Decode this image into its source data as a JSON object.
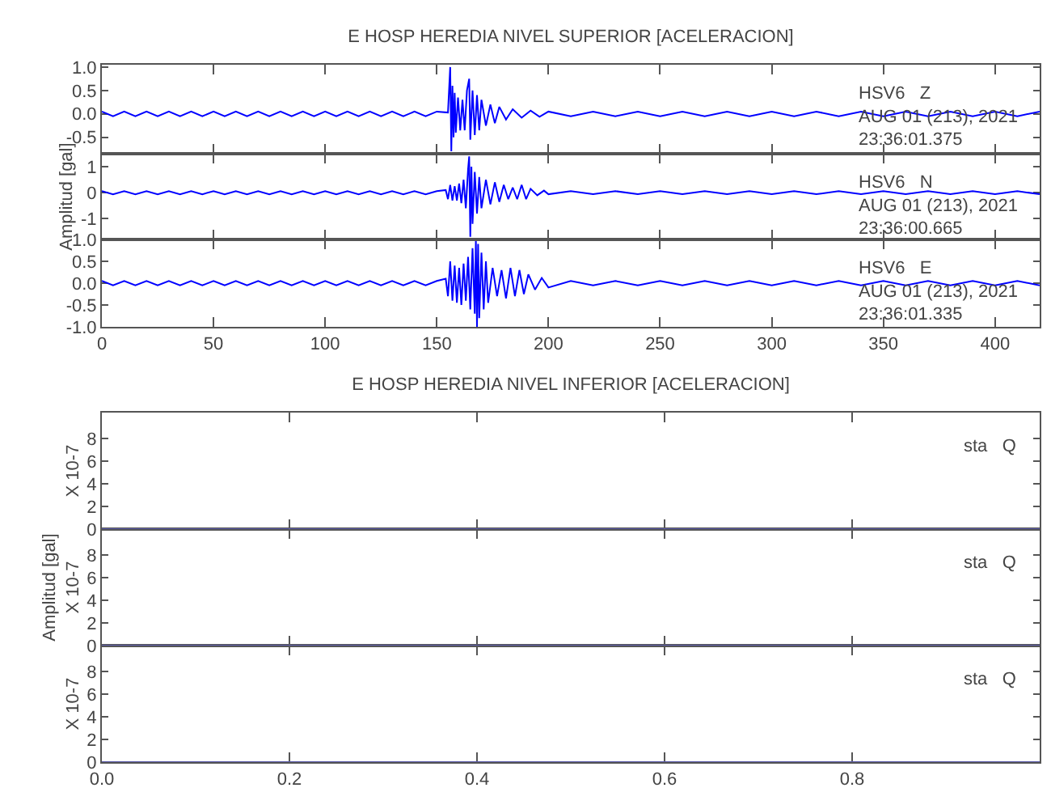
{
  "chart_data": [
    {
      "type": "line",
      "title": "E HOSP HEREDIA NIVEL SUPERIOR [ACELERACION]",
      "annotations": [
        "HSV6   Z",
        "AUG 01 (213), 2021",
        "23:36:01.375"
      ],
      "xlim": [
        0,
        420
      ],
      "xticks": [
        0,
        50,
        100,
        150,
        200,
        250,
        300,
        350,
        400
      ],
      "ylim": [
        -0.85,
        1.05
      ],
      "yticks": [
        -0.5,
        {
          "value": 0,
          "label": "0.0"
        },
        0.5,
        {
          "value": 1,
          "label": "1.0"
        }
      ],
      "tick_labels": "y",
      "grid": false,
      "series": [
        {
          "color": "#0000ff",
          "x": [
            0,
            5,
            10,
            15,
            20,
            25,
            30,
            35,
            40,
            45,
            50,
            55,
            60,
            65,
            70,
            75,
            80,
            85,
            90,
            95,
            100,
            105,
            110,
            115,
            120,
            125,
            130,
            135,
            140,
            145,
            150,
            155,
            156,
            156.5,
            157,
            157.5,
            158,
            158.5,
            159.5,
            160.5,
            161.5,
            162.5,
            163.5,
            164.5,
            165,
            166,
            167,
            168,
            169,
            170,
            172,
            174,
            176,
            178,
            181,
            184,
            188,
            192,
            196,
            200,
            210,
            220,
            230,
            240,
            250,
            260,
            270,
            280,
            290,
            300,
            310,
            320,
            330,
            340,
            350,
            360,
            370,
            380,
            390,
            400,
            410,
            420
          ],
          "values": [
            0.05,
            -0.05,
            0.05,
            -0.05,
            0.05,
            -0.05,
            0.05,
            -0.05,
            0.05,
            -0.05,
            0.05,
            -0.05,
            0.05,
            -0.05,
            0.05,
            -0.05,
            0.05,
            -0.05,
            0.05,
            -0.05,
            0.05,
            -0.05,
            0.05,
            -0.05,
            0.05,
            -0.05,
            0.05,
            -0.05,
            0.05,
            -0.05,
            0.05,
            0.03,
            1.0,
            -0.8,
            0.6,
            -0.5,
            0.45,
            -0.4,
            0.35,
            -0.35,
            0.3,
            -0.35,
            0.5,
            0.75,
            -0.55,
            0.5,
            -0.45,
            0.4,
            -0.35,
            0.3,
            -0.25,
            0.2,
            -0.2,
            0.15,
            -0.12,
            0.1,
            -0.08,
            0.07,
            -0.06,
            0.05,
            -0.05,
            0.05,
            -0.05,
            0.05,
            -0.05,
            0.05,
            -0.05,
            0.05,
            -0.05,
            0.05,
            -0.05,
            0.05,
            -0.05,
            0.05,
            -0.05,
            0.05,
            -0.05,
            0.05,
            -0.05,
            0.05,
            -0.05,
            0.05
          ]
        }
      ]
    },
    {
      "type": "line",
      "ylabel": "Amplitud [gal]",
      "annotations": [
        "HSV6   N",
        "AUG 01 (213), 2021",
        "23:36:00.665"
      ],
      "xlim": [
        0,
        420
      ],
      "xticks": [
        0,
        50,
        100,
        150,
        200,
        250,
        300,
        350,
        400
      ],
      "ylim": [
        -1.8,
        1.5
      ],
      "yticks": [
        -1,
        0,
        1
      ],
      "tick_labels": "y",
      "grid": false,
      "series": [
        {
          "color": "#0000ff",
          "x": [
            0,
            5,
            10,
            15,
            20,
            25,
            30,
            35,
            40,
            45,
            50,
            55,
            60,
            65,
            70,
            75,
            80,
            85,
            90,
            95,
            100,
            105,
            110,
            115,
            120,
            125,
            130,
            135,
            140,
            145,
            150,
            154,
            155,
            156,
            157,
            158,
            159,
            160,
            161,
            162,
            163,
            164,
            164.5,
            165,
            165.5,
            166,
            167,
            168,
            169,
            170,
            172,
            174,
            176,
            178,
            180,
            182,
            184,
            186,
            188,
            190,
            192,
            195,
            198,
            200,
            210,
            220,
            230,
            240,
            250,
            260,
            270,
            280,
            290,
            300,
            310,
            320,
            330,
            340,
            350,
            360,
            370,
            380,
            390,
            400,
            410,
            420
          ],
          "values": [
            0.06,
            -0.06,
            0.06,
            -0.06,
            0.06,
            -0.06,
            0.06,
            -0.06,
            0.06,
            -0.06,
            0.06,
            -0.06,
            0.06,
            -0.06,
            0.06,
            -0.06,
            0.06,
            -0.06,
            0.06,
            -0.06,
            0.06,
            -0.06,
            0.06,
            -0.06,
            0.06,
            -0.06,
            0.06,
            -0.06,
            0.06,
            -0.06,
            0.06,
            0.1,
            -0.25,
            0.3,
            -0.3,
            0.25,
            -0.3,
            0.35,
            -0.4,
            0.5,
            -0.6,
            0.9,
            1.4,
            -1.7,
            1.0,
            -1.2,
            0.8,
            -0.8,
            0.6,
            -0.6,
            0.5,
            -0.45,
            0.4,
            -0.35,
            0.3,
            -0.25,
            0.2,
            -0.25,
            0.3,
            -0.25,
            0.15,
            -0.1,
            0.08,
            -0.06,
            0.06,
            -0.06,
            0.06,
            -0.06,
            0.06,
            -0.06,
            0.06,
            -0.06,
            0.06,
            -0.06,
            0.06,
            -0.06,
            0.06,
            -0.06,
            0.06,
            -0.06,
            0.06,
            -0.06,
            0.06,
            -0.06,
            0.06,
            -0.06
          ]
        }
      ]
    },
    {
      "type": "line",
      "annotations": [
        "HSV6   E",
        "AUG 01 (213), 2021",
        "23:36:01.335"
      ],
      "xlim": [
        0,
        420
      ],
      "xticks": [
        0,
        50,
        100,
        150,
        200,
        250,
        300,
        350,
        400
      ],
      "ylim": [
        -1.0,
        1.0
      ],
      "yticks": [
        {
          "value": -1,
          "label": "-1.0"
        },
        -0.5,
        {
          "value": 0,
          "label": "0.0"
        },
        0.5,
        {
          "value": 1,
          "label": "1.0"
        }
      ],
      "grid": false,
      "series": [
        {
          "color": "#0000ff",
          "x": [
            0,
            5,
            10,
            15,
            20,
            25,
            30,
            35,
            40,
            45,
            50,
            55,
            60,
            65,
            70,
            75,
            80,
            85,
            90,
            95,
            100,
            105,
            110,
            115,
            120,
            125,
            130,
            135,
            140,
            145,
            150,
            154,
            155,
            156,
            157,
            158,
            159,
            160,
            161,
            162,
            163,
            164,
            165,
            166,
            167,
            167.5,
            168,
            168.5,
            169,
            170,
            171,
            172,
            173,
            175,
            177,
            179,
            181,
            183,
            185,
            187,
            189,
            191,
            194,
            197,
            200,
            210,
            220,
            230,
            240,
            250,
            260,
            270,
            280,
            290,
            300,
            310,
            320,
            330,
            340,
            350,
            360,
            370,
            380,
            390,
            400,
            410,
            420
          ],
          "values": [
            0.05,
            -0.05,
            0.05,
            -0.05,
            0.05,
            -0.05,
            0.05,
            -0.05,
            0.05,
            -0.05,
            0.05,
            -0.05,
            0.05,
            -0.05,
            0.05,
            -0.05,
            0.05,
            -0.05,
            0.05,
            -0.05,
            0.05,
            -0.05,
            0.05,
            -0.05,
            0.05,
            -0.05,
            0.05,
            -0.05,
            0.05,
            -0.05,
            0.05,
            0.1,
            -0.3,
            0.5,
            -0.4,
            0.4,
            -0.45,
            0.35,
            -0.5,
            0.45,
            -0.4,
            0.6,
            -0.6,
            0.8,
            -0.7,
            1.0,
            -1.0,
            0.9,
            -0.8,
            0.7,
            -0.6,
            0.5,
            -0.45,
            0.35,
            -0.3,
            0.3,
            -0.35,
            0.35,
            -0.3,
            0.3,
            -0.25,
            0.2,
            -0.15,
            0.12,
            -0.1,
            0.05,
            -0.05,
            0.05,
            -0.05,
            0.05,
            -0.05,
            0.05,
            -0.05,
            0.05,
            -0.05,
            0.05,
            -0.05,
            0.05,
            -0.05,
            0.05,
            -0.05,
            0.05,
            -0.05,
            0.05,
            -0.05,
            0.05,
            -0.05
          ]
        }
      ]
    },
    {
      "type": "line",
      "title": "E HOSP HEREDIA NIVEL INFERIOR [ACELERACION]",
      "ylabel": "X 10-7",
      "annotations": [
        "sta   Q"
      ],
      "xlim": [
        0,
        1
      ],
      "xticks": [
        0.2,
        0.4,
        0.6,
        0.8
      ],
      "ylim": [
        0,
        10.3
      ],
      "yticks": [
        0,
        2,
        4,
        6,
        8
      ],
      "tick_labels": "y",
      "grid": false,
      "series": [
        {
          "color": "#5b5bab",
          "x": [
            0,
            1
          ],
          "values": [
            0,
            0
          ]
        }
      ]
    },
    {
      "type": "line",
      "ylabel": "Amplitud [gal]\nX 10-7",
      "annotations": [
        "sta   Q"
      ],
      "xlim": [
        0,
        1
      ],
      "xticks": [
        0.2,
        0.4,
        0.6,
        0.8
      ],
      "ylim": [
        0,
        10.3
      ],
      "yticks": [
        0,
        2,
        4,
        6,
        8
      ],
      "tick_labels": "y",
      "grid": false,
      "series": [
        {
          "color": "#5b5bab",
          "x": [
            0,
            1
          ],
          "values": [
            0,
            0
          ]
        }
      ]
    },
    {
      "type": "line",
      "ylabel": "X 10-7",
      "annotations": [
        "sta   Q"
      ],
      "xlim": [
        0,
        1
      ],
      "xticks": [
        {
          "value": 0,
          "label": "0.0"
        },
        0.2,
        0.4,
        0.6,
        0.8
      ],
      "ylim": [
        0,
        10.3
      ],
      "yticks": [
        0,
        2,
        4,
        6,
        8
      ],
      "grid": false,
      "series": [
        {
          "color": "#5b5bab",
          "x": [
            0,
            1
          ],
          "values": [
            0,
            0
          ]
        }
      ]
    }
  ]
}
